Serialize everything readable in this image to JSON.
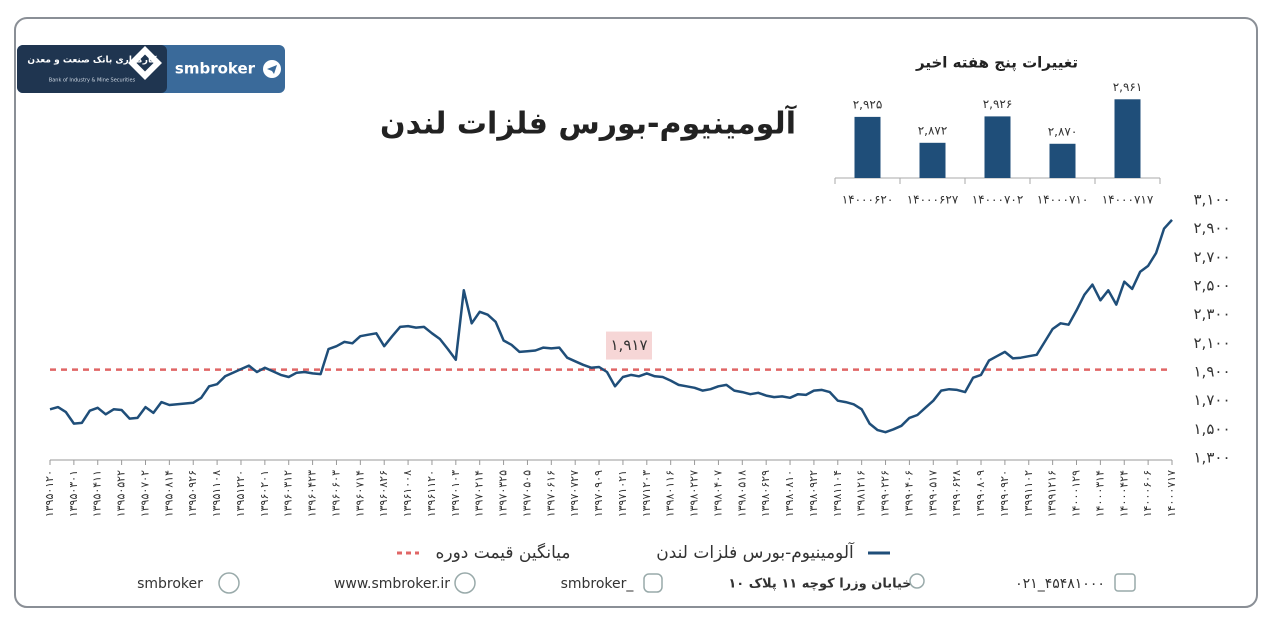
{
  "chart_data": [
    {
      "type": "line",
      "title": "آلومینیوم-بورس فلزات لندن",
      "categories": [
        "۱۳۹۵۰۱۲۰",
        null,
        null,
        "۱۳۹۵۰۳۰۱",
        null,
        null,
        "۱۳۹۵۰۴۱۱",
        null,
        null,
        "۱۳۹۵۰۵۲۲",
        null,
        null,
        "۱۳۹۵۰۷۰۲",
        null,
        null,
        "۱۳۹۵۰۸۱۴",
        null,
        null,
        "۱۳۹۵۰۹۲۶",
        null,
        null,
        "۱۳۹۵۱۱۰۸",
        null,
        null,
        "۱۳۹۵۱۲۲۰",
        null,
        null,
        "۱۳۹۶۰۲۰۱",
        null,
        null,
        "۱۳۹۶۰۳۱۲",
        null,
        null,
        "۱۳۹۶۰۴۲۳",
        null,
        null,
        "۱۳۹۶۰۶۰۳",
        null,
        null,
        "۱۳۹۶۰۷۱۴",
        null,
        null,
        "۱۳۹۶۰۸۲۶",
        null,
        null,
        "۱۳۹۶۱۰۰۸",
        null,
        null,
        "۱۳۹۶۱۱۲۰",
        null,
        null,
        "۱۳۹۷۰۱۰۳",
        null,
        null,
        "۱۳۹۷۰۲۱۴",
        null,
        null,
        "۱۳۹۷۰۳۲۵",
        null,
        null,
        "۱۳۹۷۰۵۰۵",
        null,
        null,
        "۱۳۹۷۰۶۱۶",
        null,
        null,
        "۱۳۹۷۰۷۲۷",
        null,
        null,
        "۱۳۹۷۰۹۰۹",
        null,
        null,
        "۱۳۹۷۱۰۲۱",
        null,
        null,
        "۱۳۹۷۱۲۰۳",
        null,
        null,
        "۱۳۹۸۰۱۱۶",
        null,
        null,
        "۱۳۹۸۰۲۲۷",
        null,
        null,
        "۱۳۹۸۰۴۰۷",
        null,
        null,
        "۱۳۹۸۰۵۱۸",
        null,
        null,
        "۱۳۹۸۰۶۲۹",
        null,
        null,
        "۱۳۹۸۰۸۱۰",
        null,
        null,
        "۱۳۹۸۰۹۲۲",
        null,
        null,
        "۱۳۹۸۱۱۰۴",
        null,
        null,
        "۱۳۹۸۱۲۱۶",
        null,
        null,
        "۱۳۹۹۰۲۲۶",
        null,
        null,
        "۱۳۹۹۰۴۰۶",
        null,
        null,
        "۱۳۹۹۰۵۱۷",
        null,
        null,
        "۱۳۹۹۰۶۲۸",
        null,
        null,
        "۱۳۹۹۰۸۰۹",
        null,
        null,
        "۱۳۹۹۰۹۲۰",
        null,
        null,
        "۱۳۹۹۱۱۰۲",
        null,
        null,
        "۱۳۹۹۱۲۱۶",
        null,
        null,
        "۱۴۰۰۰۱۲۹",
        null,
        null,
        "۱۴۰۰۰۳۱۴",
        null,
        null,
        "۱۴۰۰۰۴۲۴",
        null,
        null,
        "۱۴۰۰۰۶۰۶",
        null,
        null,
        "۱۴۰۰۰۷۱۷"
      ],
      "series": [
        {
          "name": "آلومینیوم-بورس فلزات لندن",
          "color": "#1f4e79",
          "values": [
            1640,
            1655,
            1620,
            1540,
            1545,
            1630,
            1650,
            1605,
            1640,
            1635,
            1575,
            1580,
            1655,
            1615,
            1690,
            1670,
            1675,
            1680,
            1685,
            1720,
            1800,
            1815,
            1870,
            1895,
            1920,
            1945,
            1900,
            1930,
            1905,
            1880,
            1865,
            1895,
            1900,
            1890,
            1885,
            2060,
            2080,
            2110,
            2100,
            2150,
            2160,
            2170,
            2080,
            2150,
            2215,
            2220,
            2210,
            2215,
            2170,
            2130,
            2060,
            1985,
            2470,
            2240,
            2320,
            2300,
            2250,
            2120,
            2090,
            2040,
            2045,
            2050,
            2070,
            2065,
            2070,
            2000,
            1975,
            1950,
            1930,
            1935,
            1900,
            1800,
            1865,
            1880,
            1870,
            1890,
            1870,
            1865,
            1840,
            1810,
            1800,
            1790,
            1770,
            1780,
            1800,
            1810,
            1770,
            1760,
            1745,
            1755,
            1735,
            1725,
            1730,
            1720,
            1745,
            1740,
            1770,
            1775,
            1760,
            1700,
            1690,
            1675,
            1640,
            1540,
            1495,
            1480,
            1500,
            1525,
            1580,
            1600,
            1650,
            1700,
            1770,
            1780,
            1775,
            1760,
            1860,
            1880,
            1980,
            2010,
            2040,
            1995,
            2000,
            2010,
            2020,
            2110,
            2200,
            2240,
            2230,
            2330,
            2440,
            2510,
            2400,
            2470,
            2370,
            2530,
            2480,
            2600,
            2640,
            2730,
            2900,
            2961
          ]
        }
      ],
      "average": {
        "name": "میانگین قیمت دوره",
        "value": 1917,
        "value_label": "۱,۹۱۷",
        "color": "#e06666"
      },
      "ylim": [
        1300,
        3100
      ],
      "yticks": [
        {
          "value": 1300,
          "label": "۱,۳۰۰"
        },
        {
          "value": 1500,
          "label": "۱,۵۰۰"
        },
        {
          "value": 1700,
          "label": "۱,۷۰۰"
        },
        {
          "value": 1900,
          "label": "۱,۹۰۰"
        },
        {
          "value": 2100,
          "label": "۲,۱۰۰"
        },
        {
          "value": 2300,
          "label": "۲,۳۰۰"
        },
        {
          "value": 2500,
          "label": "۲,۵۰۰"
        },
        {
          "value": 2700,
          "label": "۲,۷۰۰"
        },
        {
          "value": 2900,
          "label": "۲,۹۰۰"
        },
        {
          "value": 3100,
          "label": "۳,۱۰۰"
        }
      ],
      "grid": false,
      "legend": "bottom"
    },
    {
      "type": "bar",
      "title": "تغییرات پنج هفته اخیر",
      "categories": [
        "۱۴۰۰۰۶۲۰",
        "۱۴۰۰۰۶۲۷",
        "۱۴۰۰۰۷۰۲",
        "۱۴۰۰۰۷۱۰",
        "۱۴۰۰۰۷۱۷"
      ],
      "values": [
        2925,
        2872,
        2926,
        2870,
        2961
      ],
      "value_labels": [
        "۲,۹۲۵",
        "۲,۸۷۲",
        "۲,۹۲۶",
        "۲,۸۷۰",
        "۲,۹۶۱"
      ],
      "color": "#1f4e79",
      "ylim": [
        2800,
        2980
      ]
    }
  ],
  "page": {
    "brand": "smbroker",
    "bank_name": "کارگزاری بانک صنعت و معدن",
    "bank_name_en": "Bank of Industry & Mine Securities",
    "footer": {
      "telegram": "smbroker",
      "website": "www.smbroker.ir",
      "instagram": "smbroker_",
      "address": "خیابان وزرا کوچه ۱۱ پلاک ۱۰",
      "phone": "۰۲۱_۴۵۴۸۱۰۰۰"
    }
  }
}
